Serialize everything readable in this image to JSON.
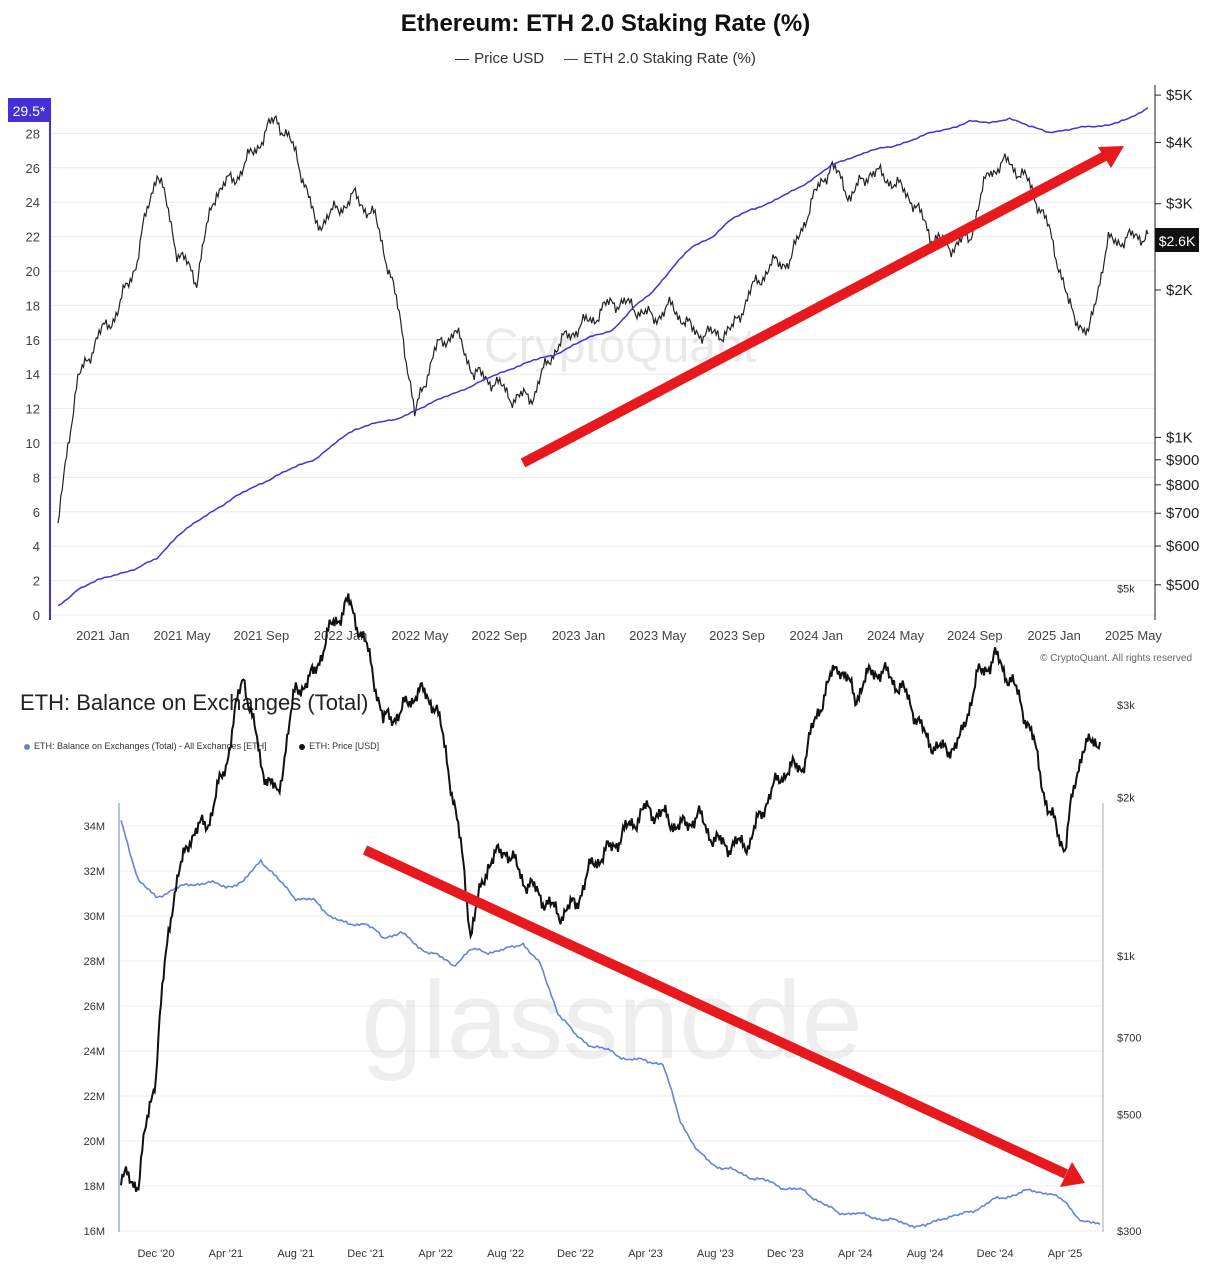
{
  "chart1": {
    "title": "Ethereum: ETH 2.0 Staking Rate (%)",
    "legend": [
      "Price USD",
      "ETH 2.0 Staking Rate (%)"
    ],
    "left_ticks": [
      "0",
      "2",
      "4",
      "6",
      "8",
      "10",
      "12",
      "14",
      "16",
      "18",
      "20",
      "22",
      "24",
      "26",
      "28"
    ],
    "right_ticks": [
      "$500",
      "$600",
      "$700",
      "$800",
      "$900",
      "$1K",
      "$2K",
      "$3K",
      "$4K",
      "$5K"
    ],
    "x_ticks": [
      "2021 Jan",
      "2021 May",
      "2021 Sep",
      "2022 Jan",
      "2022 May",
      "2022 Sep",
      "2023 Jan",
      "2023 May",
      "2023 Sep",
      "2024 Jan",
      "2024 May",
      "2024 Sep",
      "2025 Jan",
      "2025 May"
    ],
    "current_rate_label": "29.5*",
    "current_price_label": "$2.6K",
    "watermark": "CryptoQuant",
    "copyright": "© CryptoQuant. All rights reserved",
    "colors": {
      "rate": "#4530d8",
      "price": "#222222",
      "arrow": "#e8191c"
    }
  },
  "chart2": {
    "title": "ETH: Balance on Exchanges (Total)",
    "legend": [
      "ETH: Balance on Exchanges (Total) - All Exchanges [ETH]",
      "ETH: Price [USD]"
    ],
    "left_ticks": [
      "16M",
      "18M",
      "20M",
      "22M",
      "24M",
      "26M",
      "28M",
      "30M",
      "32M",
      "34M"
    ],
    "right_ticks": [
      "$300",
      "$500",
      "$700",
      "$1k",
      "$2k",
      "$3k",
      "$5k"
    ],
    "x_ticks": [
      "Dec '20",
      "Apr '21",
      "Aug '21",
      "Dec '21",
      "Apr '22",
      "Aug '22",
      "Dec '22",
      "Apr '23",
      "Aug '23",
      "Dec '23",
      "Apr '24",
      "Aug '24",
      "Dec '24",
      "Apr '25"
    ],
    "watermark": "glassnode",
    "colors": {
      "balance": "#6683d9",
      "price": "#111111",
      "arrow": "#e8191c"
    }
  },
  "chart_data": [
    {
      "type": "line",
      "title": "Ethereum: ETH 2.0 Staking Rate (%)",
      "x": [
        "2020-12",
        "2021-01",
        "2021-02",
        "2021-03",
        "2021-04",
        "2021-05",
        "2021-06",
        "2021-07",
        "2021-08",
        "2021-09",
        "2021-10",
        "2021-11",
        "2021-12",
        "2022-01",
        "2022-02",
        "2022-03",
        "2022-04",
        "2022-05",
        "2022-06",
        "2022-07",
        "2022-08",
        "2022-09",
        "2022-10",
        "2022-11",
        "2022-12",
        "2023-01",
        "2023-02",
        "2023-03",
        "2023-04",
        "2023-05",
        "2023-06",
        "2023-07",
        "2023-08",
        "2023-09",
        "2023-10",
        "2023-11",
        "2023-12",
        "2024-01",
        "2024-02",
        "2024-03",
        "2024-04",
        "2024-05",
        "2024-06",
        "2024-07",
        "2024-08",
        "2024-09",
        "2024-10",
        "2024-11",
        "2024-12",
        "2025-01",
        "2025-02",
        "2025-03",
        "2025-04",
        "2025-05",
        "2025-06",
        "2025-07"
      ],
      "series": [
        {
          "name": "ETH 2.0 Staking Rate (%)",
          "axis": "left",
          "values": [
            0.5,
            1.5,
            2.0,
            2.4,
            2.7,
            3.3,
            4.6,
            5.4,
            6.2,
            6.9,
            7.5,
            8.1,
            8.6,
            9.1,
            10.0,
            10.8,
            11.2,
            11.3,
            11.9,
            12.4,
            12.9,
            13.4,
            13.9,
            14.4,
            14.8,
            15.1,
            15.7,
            16.2,
            16.6,
            17.8,
            18.8,
            20.2,
            21.4,
            22.0,
            23.0,
            23.6,
            24.0,
            24.6,
            25.3,
            26.1,
            26.6,
            27.0,
            27.2,
            27.6,
            28.0,
            28.3,
            28.7,
            28.6,
            28.9,
            28.4,
            28.1,
            28.2,
            28.4,
            28.5,
            28.8,
            29.5
          ]
        },
        {
          "name": "Price USD",
          "axis": "right",
          "values": [
            640,
            1300,
            1600,
            1800,
            2300,
            3500,
            2400,
            2100,
            3200,
            3400,
            3900,
            4500,
            3800,
            2700,
            2900,
            3100,
            2800,
            1950,
            1100,
            1500,
            1650,
            1350,
            1300,
            1200,
            1220,
            1500,
            1650,
            1750,
            1900,
            1850,
            1750,
            1850,
            1650,
            1620,
            1650,
            2000,
            2250,
            2300,
            3000,
            3600,
            3100,
            3500,
            3350,
            3100,
            2600,
            2450,
            2550,
            3500,
            3650,
            3300,
            2650,
            1850,
            1600,
            2500,
            2550,
            2600
          ]
        }
      ],
      "ylim_left": [
        0,
        30
      ],
      "ylim_right": [
        450,
        5300
      ],
      "right_scale": "log"
    },
    {
      "type": "line",
      "title": "ETH: Balance on Exchanges (Total)",
      "x": [
        "2020-10",
        "2020-11",
        "2020-12",
        "2021-01",
        "2021-02",
        "2021-03",
        "2021-04",
        "2021-05",
        "2021-06",
        "2021-07",
        "2021-08",
        "2021-09",
        "2021-10",
        "2021-11",
        "2021-12",
        "2022-01",
        "2022-02",
        "2022-03",
        "2022-04",
        "2022-05",
        "2022-06",
        "2022-07",
        "2022-08",
        "2022-09",
        "2022-10",
        "2022-11",
        "2022-12",
        "2023-01",
        "2023-02",
        "2023-03",
        "2023-04",
        "2023-05",
        "2023-06",
        "2023-07",
        "2023-08",
        "2023-09",
        "2023-10",
        "2023-11",
        "2023-12",
        "2024-01",
        "2024-02",
        "2024-03",
        "2024-04",
        "2024-05",
        "2024-06",
        "2024-07",
        "2024-08",
        "2024-09",
        "2024-10",
        "2024-11",
        "2024-12",
        "2025-01",
        "2025-02",
        "2025-03",
        "2025-04",
        "2025-05",
        "2025-06"
      ],
      "series": [
        {
          "name": "ETH: Balance on Exchanges (Total) - All Exchanges [ETH]",
          "axis": "left",
          "values": [
            34.2,
            31.6,
            30.8,
            31.2,
            31.4,
            31.5,
            31.3,
            31.5,
            32.5,
            31.6,
            30.8,
            30.7,
            30.0,
            29.6,
            29.7,
            29.0,
            29.3,
            28.6,
            28.3,
            27.8,
            28.5,
            28.4,
            28.5,
            28.8,
            27.8,
            25.7,
            24.7,
            24.2,
            24.0,
            23.6,
            23.6,
            23.4,
            20.9,
            19.5,
            18.9,
            18.7,
            18.4,
            18.2,
            17.9,
            17.8,
            17.3,
            16.8,
            16.8,
            16.6,
            16.5,
            16.3,
            16.2,
            16.6,
            16.7,
            17.0,
            17.4,
            17.6,
            17.8,
            17.7,
            17.3,
            16.4,
            16.3
          ]
        },
        {
          "name": "ETH: Price [USD]",
          "axis": "right",
          "values": [
            380,
            370,
            600,
            1300,
            1700,
            1800,
            2300,
            3400,
            2300,
            2000,
            3200,
            3400,
            4200,
            4700,
            3900,
            2800,
            2900,
            3200,
            3000,
            2000,
            1100,
            1500,
            1600,
            1400,
            1300,
            1200,
            1250,
            1500,
            1600,
            1750,
            1900,
            1850,
            1750,
            1850,
            1650,
            1620,
            1650,
            2000,
            2250,
            2300,
            3000,
            3600,
            3100,
            3500,
            3400,
            3100,
            2600,
            2450,
            2550,
            3400,
            3700,
            3300,
            2700,
            1900,
            1600,
            2500,
            2550
          ]
        }
      ],
      "right_scale": "log"
    }
  ]
}
